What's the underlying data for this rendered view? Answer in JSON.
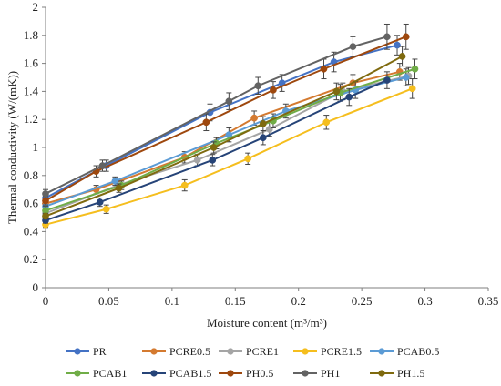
{
  "chart_data": {
    "type": "line",
    "title": "",
    "xlabel": "Moisture content (m³/m³)",
    "ylabel": "Thermal conductivity (W/(mK))",
    "xlim": [
      0,
      0.35
    ],
    "ylim": [
      0,
      2
    ],
    "x_ticks": [
      "0",
      "0.05",
      "0.1",
      "0.15",
      "0.2",
      "0.25",
      "0.3",
      "0.35"
    ],
    "y_ticks": [
      "0",
      "0.2",
      "0.4",
      "0.6",
      "0.8",
      "1",
      "1.2",
      "1.4",
      "1.6",
      "1.8",
      "2"
    ],
    "grid": "none",
    "error_bars": true,
    "legend_position": "bottom",
    "series": [
      {
        "name": "PR",
        "color": "#4472C4",
        "points": [
          [
            0,
            0.64,
            0.03
          ],
          [
            0.048,
            0.87,
            0.04
          ],
          [
            0.13,
            1.25,
            0.06
          ],
          [
            0.187,
            1.46,
            0.06
          ],
          [
            0.228,
            1.61,
            0.07
          ],
          [
            0.278,
            1.73,
            0.07
          ]
        ]
      },
      {
        "name": "PCRE0.5",
        "color": "#D47A30",
        "points": [
          [
            0,
            0.6,
            0.03
          ],
          [
            0.04,
            0.7,
            0.03
          ],
          [
            0.11,
            0.93,
            0.04
          ],
          [
            0.165,
            1.21,
            0.05
          ],
          [
            0.243,
            1.46,
            0.06
          ],
          [
            0.28,
            1.54,
            0.06
          ]
        ]
      },
      {
        "name": "PCRE1",
        "color": "#A5A5A5",
        "points": [
          [
            0,
            0.53,
            0.03
          ],
          [
            0.057,
            0.73,
            0.03
          ],
          [
            0.12,
            0.91,
            0.04
          ],
          [
            0.177,
            1.13,
            0.05
          ],
          [
            0.235,
            1.4,
            0.06
          ],
          [
            0.287,
            1.51,
            0.06
          ]
        ]
      },
      {
        "name": "PCRE1.5",
        "color": "#F5BE1E",
        "points": [
          [
            0,
            0.45,
            0.02
          ],
          [
            0.048,
            0.56,
            0.03
          ],
          [
            0.11,
            0.73,
            0.04
          ],
          [
            0.16,
            0.92,
            0.04
          ],
          [
            0.222,
            1.18,
            0.05
          ],
          [
            0.29,
            1.42,
            0.07
          ]
        ]
      },
      {
        "name": "PCAB0.5",
        "color": "#5B9BD5",
        "points": [
          [
            0,
            0.58,
            0.03
          ],
          [
            0.055,
            0.76,
            0.03
          ],
          [
            0.145,
            1.09,
            0.05
          ],
          [
            0.19,
            1.26,
            0.05
          ],
          [
            0.245,
            1.41,
            0.06
          ],
          [
            0.285,
            1.5,
            0.06
          ]
        ]
      },
      {
        "name": "PCAB1",
        "color": "#70AD47",
        "points": [
          [
            0,
            0.55,
            0.03
          ],
          [
            0.06,
            0.73,
            0.03
          ],
          [
            0.135,
            1.03,
            0.04
          ],
          [
            0.18,
            1.19,
            0.05
          ],
          [
            0.233,
            1.39,
            0.06
          ],
          [
            0.292,
            1.56,
            0.07
          ]
        ]
      },
      {
        "name": "PCAB1.5",
        "color": "#264478",
        "points": [
          [
            0,
            0.48,
            0.02
          ],
          [
            0.043,
            0.61,
            0.03
          ],
          [
            0.132,
            0.91,
            0.04
          ],
          [
            0.172,
            1.07,
            0.05
          ],
          [
            0.24,
            1.36,
            0.06
          ],
          [
            0.27,
            1.48,
            0.06
          ]
        ]
      },
      {
        "name": "PH0.5",
        "color": "#9E480E",
        "points": [
          [
            0,
            0.62,
            0.03
          ],
          [
            0.04,
            0.83,
            0.04
          ],
          [
            0.127,
            1.18,
            0.06
          ],
          [
            0.18,
            1.41,
            0.06
          ],
          [
            0.22,
            1.56,
            0.07
          ],
          [
            0.285,
            1.79,
            0.09
          ]
        ]
      },
      {
        "name": "PH1",
        "color": "#636363",
        "points": [
          [
            0,
            0.67,
            0.03
          ],
          [
            0.045,
            0.87,
            0.04
          ],
          [
            0.145,
            1.33,
            0.06
          ],
          [
            0.168,
            1.44,
            0.06
          ],
          [
            0.243,
            1.72,
            0.07
          ],
          [
            0.27,
            1.79,
            0.09
          ]
        ]
      },
      {
        "name": "PH1.5",
        "color": "#7F6A0F",
        "points": [
          [
            0,
            0.51,
            0.02
          ],
          [
            0.058,
            0.71,
            0.03
          ],
          [
            0.133,
            1.0,
            0.04
          ],
          [
            0.172,
            1.17,
            0.05
          ],
          [
            0.23,
            1.4,
            0.06
          ],
          [
            0.282,
            1.65,
            0.07
          ]
        ]
      }
    ]
  }
}
